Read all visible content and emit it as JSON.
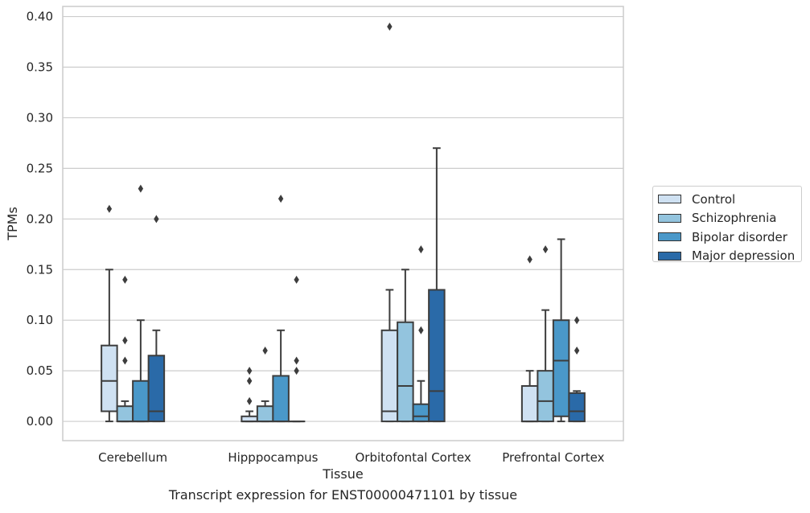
{
  "caption": "Transcript expression for ENST00000471101 by tissue",
  "chart_data": {
    "type": "box",
    "xlabel": "Tissue",
    "ylabel": "TPMs",
    "ylim": [
      -0.019,
      0.41
    ],
    "yticks": [
      0.0,
      0.05,
      0.1,
      0.15,
      0.2,
      0.25,
      0.3,
      0.35,
      0.4
    ],
    "ytick_labels": [
      "0.00",
      "0.05",
      "0.10",
      "0.15",
      "0.20",
      "0.25",
      "0.30",
      "0.35",
      "0.40"
    ],
    "grid": true,
    "legend_position": "right",
    "categories": [
      "Cerebellum",
      "Hipppocampus",
      "Orbitofontal Cortex",
      "Prefrontal Cortex"
    ],
    "series": [
      {
        "name": "Control",
        "color": "#cfe1f2",
        "boxes": [
          {
            "q1": 0.01,
            "median": 0.04,
            "q3": 0.075,
            "whisker_low": 0.0,
            "whisker_high": 0.15,
            "outliers": [
              0.21
            ]
          },
          {
            "q1": 0.0,
            "median": 0.0,
            "q3": 0.005,
            "whisker_low": 0.0,
            "whisker_high": 0.01,
            "outliers": [
              0.02,
              0.04,
              0.05
            ]
          },
          {
            "q1": 0.0,
            "median": 0.01,
            "q3": 0.09,
            "whisker_low": 0.0,
            "whisker_high": 0.13,
            "outliers": [
              0.39
            ]
          },
          {
            "q1": 0.0,
            "median": 0.0,
            "q3": 0.035,
            "whisker_low": 0.0,
            "whisker_high": 0.05,
            "outliers": [
              0.16
            ]
          }
        ]
      },
      {
        "name": "Schizophrenia",
        "color": "#93c4de",
        "boxes": [
          {
            "q1": 0.0,
            "median": 0.0,
            "q3": 0.015,
            "whisker_low": 0.0,
            "whisker_high": 0.02,
            "outliers": [
              0.06,
              0.08,
              0.14
            ]
          },
          {
            "q1": 0.0,
            "median": 0.0,
            "q3": 0.015,
            "whisker_low": 0.0,
            "whisker_high": 0.02,
            "outliers": [
              0.07
            ]
          },
          {
            "q1": 0.0,
            "median": 0.035,
            "q3": 0.098,
            "whisker_low": 0.0,
            "whisker_high": 0.15,
            "outliers": []
          },
          {
            "q1": 0.0,
            "median": 0.02,
            "q3": 0.05,
            "whisker_low": 0.0,
            "whisker_high": 0.11,
            "outliers": [
              0.17
            ]
          }
        ]
      },
      {
        "name": "Bipolar disorder",
        "color": "#4a98c9",
        "boxes": [
          {
            "q1": 0.0,
            "median": 0.0,
            "q3": 0.04,
            "whisker_low": 0.0,
            "whisker_high": 0.1,
            "outliers": [
              0.23
            ]
          },
          {
            "q1": 0.0,
            "median": 0.0,
            "q3": 0.045,
            "whisker_low": 0.0,
            "whisker_high": 0.09,
            "outliers": [
              0.22
            ]
          },
          {
            "q1": 0.0,
            "median": 0.005,
            "q3": 0.017,
            "whisker_low": 0.0,
            "whisker_high": 0.04,
            "outliers": [
              0.09,
              0.17
            ]
          },
          {
            "q1": 0.005,
            "median": 0.06,
            "q3": 0.1,
            "whisker_low": 0.0,
            "whisker_high": 0.18,
            "outliers": []
          }
        ]
      },
      {
        "name": "Major depression",
        "color": "#2a6aa8",
        "boxes": [
          {
            "q1": 0.0,
            "median": 0.01,
            "q3": 0.065,
            "whisker_low": 0.0,
            "whisker_high": 0.09,
            "outliers": [
              0.2
            ]
          },
          {
            "q1": 0.0,
            "median": 0.0,
            "q3": 0.0,
            "whisker_low": 0.0,
            "whisker_high": 0.0,
            "outliers": [
              0.05,
              0.06,
              0.14
            ]
          },
          {
            "q1": 0.0,
            "median": 0.03,
            "q3": 0.13,
            "whisker_low": 0.0,
            "whisker_high": 0.27,
            "outliers": []
          },
          {
            "q1": 0.0,
            "median": 0.01,
            "q3": 0.028,
            "whisker_low": 0.0,
            "whisker_high": 0.03,
            "outliers": [
              0.07,
              0.1
            ]
          }
        ]
      }
    ]
  }
}
